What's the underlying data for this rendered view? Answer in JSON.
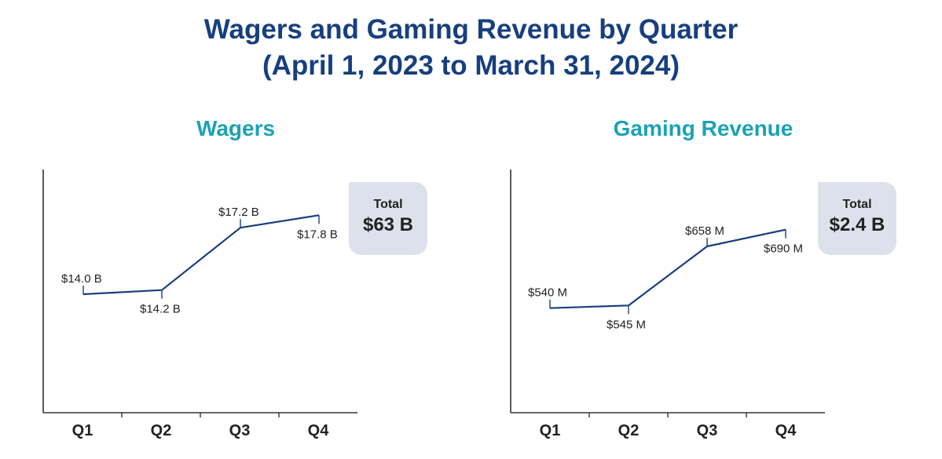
{
  "title": {
    "line1": "Wagers and Gaming Revenue by Quarter",
    "line2": "(April 1, 2023 to March 31, 2024)"
  },
  "colors": {
    "title": "#173f7f",
    "subtitle": "#1ba2b5",
    "line": "#173f7f",
    "total_box": "#dde1eb"
  },
  "chart_data": [
    {
      "type": "line",
      "title": "Wagers",
      "categories": [
        "Q1",
        "Q2",
        "Q3",
        "Q4"
      ],
      "values": [
        14.0,
        14.2,
        17.2,
        17.8
      ],
      "data_labels": [
        "$14.0 B",
        "$14.2 B",
        "$17.2 B",
        "$17.8 B"
      ],
      "unit": "B",
      "ylim": [
        8.3,
        20.0
      ],
      "grid": false,
      "total": {
        "label": "Total",
        "value": "$63 B"
      }
    },
    {
      "type": "line",
      "title": "Gaming Revenue",
      "categories": [
        "Q1",
        "Q2",
        "Q3",
        "Q4"
      ],
      "values": [
        540,
        545,
        658,
        690
      ],
      "data_labels": [
        "$540 M",
        "$545 M",
        "$658 M",
        "$690 M"
      ],
      "unit": "M",
      "ylim": [
        340,
        805
      ],
      "grid": false,
      "total": {
        "label": "Total",
        "value": "$2.4 B"
      }
    }
  ]
}
